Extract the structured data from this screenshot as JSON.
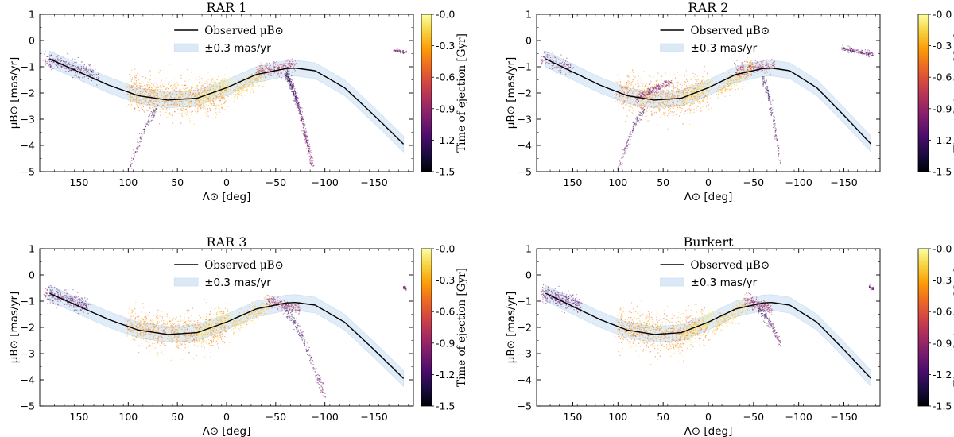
{
  "figure": {
    "colormap": "inferno",
    "cmap_stops": [
      "#000004",
      "#1b0c41",
      "#4a0c6b",
      "#781c6d",
      "#a52c60",
      "#cf4446",
      "#ed6925",
      "#fb9b06",
      "#f7d13d",
      "#fcffa4"
    ],
    "band_color": "#dbe9f6",
    "curve_color": "#000000"
  },
  "chart_data": [
    {
      "type": "scatter",
      "title": "RAR 1",
      "xlabel": "Λ⊙ [deg]",
      "ylabel": "μB⊙ [mas/yr]",
      "xlim": [
        190,
        -190
      ],
      "ylim": [
        -5,
        1
      ],
      "xticks": [
        150,
        100,
        50,
        0,
        -50,
        -100,
        -150
      ],
      "xtick_labels": [
        "150",
        "100",
        "50",
        "0",
        "−50",
        "−100",
        "−150"
      ],
      "yticks": [
        1,
        0,
        -1,
        -2,
        -3,
        -4,
        -5
      ],
      "ytick_labels": [
        "1",
        "0",
        "−1",
        "−2",
        "−3",
        "−4",
        "−5"
      ],
      "legend": {
        "curve_label": "Observed μB⊙",
        "band_label": "±0.3 mas/yr",
        "placement": "top-center"
      },
      "observed_curve": {
        "x": [
          180,
          150,
          120,
          90,
          60,
          30,
          0,
          -30,
          -60,
          -70,
          -90,
          -120,
          -150,
          -180
        ],
        "y": [
          -0.7,
          -1.2,
          -1.7,
          -2.1,
          -2.27,
          -2.2,
          -1.8,
          -1.3,
          -1.07,
          -1.05,
          -1.15,
          -1.8,
          -2.85,
          -3.95
        ]
      },
      "band_halfwidth": 0.3,
      "colorbar": {
        "label": "Time of ejection [Gyr]",
        "range": [
          -1.5,
          0.0
        ],
        "ticks": [
          -0.0,
          -0.3,
          -0.6,
          -0.9,
          -1.2,
          -1.5
        ],
        "tick_labels": [
          "-0.0",
          "-0.3",
          "-0.6",
          "-0.9",
          "-1.2",
          "-1.5"
        ]
      },
      "clouds": [
        {
          "x": [
            130,
            185
          ],
          "y": [
            -0.35,
            -1.0
          ],
          "t": [
            -1.3,
            -0.9
          ],
          "n": 300,
          "spread": 0.15,
          "shape": "curve"
        },
        {
          "x": [
            100,
            0
          ],
          "y": [
            -1.6,
            -2.6
          ],
          "t": [
            -0.6,
            -0.1
          ],
          "n": 1200,
          "spread": 0.35,
          "shape": "curve"
        },
        {
          "x": [
            30,
            -5
          ],
          "y": [
            -2.3,
            -1.6
          ],
          "t": [
            -0.15,
            0.0
          ],
          "n": 300,
          "spread": 0.15,
          "shape": "linear"
        },
        {
          "x": [
            -5,
            -40
          ],
          "y": [
            -2.1,
            -1.2
          ],
          "t": [
            -0.3,
            -0.15
          ],
          "n": 250,
          "spread": 0.18,
          "shape": "linear"
        },
        {
          "x": [
            -30,
            -70
          ],
          "y": [
            -1.2,
            -0.95
          ],
          "t": [
            -1.0,
            -0.6
          ],
          "n": 250,
          "spread": 0.12,
          "shape": "linear"
        },
        {
          "x": [
            -60,
            -88
          ],
          "y": [
            -1.3,
            -4.9
          ],
          "t": [
            -1.3,
            -0.9
          ],
          "n": 450,
          "spread": 0.12,
          "shape": "arm"
        },
        {
          "x": [
            70,
            100
          ],
          "y": [
            -2.6,
            -5.0
          ],
          "t": [
            -1.3,
            -1.0
          ],
          "n": 120,
          "spread": 0.1,
          "shape": "arm"
        },
        {
          "x": [
            -170,
            -183
          ],
          "y": [
            -0.38,
            -0.45
          ],
          "t": [
            -1.1,
            -1.0
          ],
          "n": 60,
          "spread": 0.03,
          "shape": "linear"
        }
      ]
    },
    {
      "type": "scatter",
      "title": "RAR 2",
      "xlabel": "Λ⊙ [deg]",
      "ylabel": "μB⊙ [mas/yr]",
      "xlim": [
        190,
        -190
      ],
      "ylim": [
        -5,
        1
      ],
      "xticks": [
        150,
        100,
        50,
        0,
        -50,
        -100,
        -150
      ],
      "xtick_labels": [
        "150",
        "100",
        "50",
        "0",
        "−50",
        "−100",
        "−150"
      ],
      "yticks": [
        1,
        0,
        -1,
        -2,
        -3,
        -4,
        -5
      ],
      "ytick_labels": [
        "1",
        "0",
        "−1",
        "−2",
        "−3",
        "−4",
        "−5"
      ],
      "legend": {
        "curve_label": "Observed μB⊙",
        "band_label": "±0.3 mas/yr",
        "placement": "top-center"
      },
      "observed_curve": {
        "x": [
          180,
          150,
          120,
          90,
          60,
          30,
          0,
          -30,
          -60,
          -70,
          -90,
          -120,
          -150,
          -180
        ],
        "y": [
          -0.7,
          -1.2,
          -1.7,
          -2.1,
          -2.27,
          -2.2,
          -1.8,
          -1.3,
          -1.07,
          -1.05,
          -1.15,
          -1.8,
          -2.85,
          -3.95
        ]
      },
      "band_halfwidth": 0.3,
      "colorbar": {
        "label": "Time of ejection [Gyr]",
        "range": [
          -1.5,
          0.0
        ],
        "ticks": [
          -0.0,
          -0.3,
          -0.6,
          -0.9,
          -1.2,
          -1.5
        ],
        "tick_labels": [
          "-0.0",
          "-0.3",
          "-0.6",
          "-0.9",
          "-1.2",
          "-1.5"
        ]
      },
      "clouds": [
        {
          "x": [
            150,
            185
          ],
          "y": [
            -0.5,
            -0.9
          ],
          "t": [
            -1.1,
            -0.9
          ],
          "n": 150,
          "spread": 0.15,
          "shape": "curve"
        },
        {
          "x": [
            100,
            0
          ],
          "y": [
            -1.6,
            -2.5
          ],
          "t": [
            -0.6,
            -0.2
          ],
          "n": 1000,
          "spread": 0.35,
          "shape": "curve"
        },
        {
          "x": [
            80,
            40
          ],
          "y": [
            -2.2,
            -1.55
          ],
          "t": [
            -1.1,
            -0.8
          ],
          "n": 200,
          "spread": 0.08,
          "shape": "linear"
        },
        {
          "x": [
            30,
            -5
          ],
          "y": [
            -2.3,
            -1.6
          ],
          "t": [
            -0.15,
            0.0
          ],
          "n": 250,
          "spread": 0.15,
          "shape": "linear"
        },
        {
          "x": [
            -10,
            -50
          ],
          "y": [
            -2.0,
            -1.0
          ],
          "t": [
            -0.35,
            -0.2
          ],
          "n": 250,
          "spread": 0.18,
          "shape": "linear"
        },
        {
          "x": [
            -30,
            -75
          ],
          "y": [
            -1.1,
            -0.95
          ],
          "t": [
            -1.0,
            -0.6
          ],
          "n": 200,
          "spread": 0.12,
          "shape": "linear"
        },
        {
          "x": [
            -60,
            -80
          ],
          "y": [
            -1.4,
            -4.8
          ],
          "t": [
            -1.3,
            -1.0
          ],
          "n": 150,
          "spread": 0.12,
          "shape": "arm"
        },
        {
          "x": [
            70,
            100
          ],
          "y": [
            -2.6,
            -5.0
          ],
          "t": [
            -1.3,
            -1.0
          ],
          "n": 120,
          "spread": 0.1,
          "shape": "arm"
        },
        {
          "x": [
            -148,
            -183
          ],
          "y": [
            -0.3,
            -0.55
          ],
          "t": [
            -1.2,
            -1.0
          ],
          "n": 160,
          "spread": 0.05,
          "shape": "linear"
        }
      ]
    },
    {
      "type": "scatter",
      "title": "RAR 3",
      "xlabel": "Λ⊙ [deg]",
      "ylabel": "μB⊙ [mas/yr]",
      "xlim": [
        190,
        -190
      ],
      "ylim": [
        -5,
        1
      ],
      "xticks": [
        150,
        100,
        50,
        0,
        -50,
        -100,
        -150
      ],
      "xtick_labels": [
        "150",
        "100",
        "50",
        "0",
        "−50",
        "−100",
        "−150"
      ],
      "yticks": [
        1,
        0,
        -1,
        -2,
        -3,
        -4,
        -5
      ],
      "ytick_labels": [
        "1",
        "0",
        "−1",
        "−2",
        "−3",
        "−4",
        "−5"
      ],
      "legend": {
        "curve_label": "Observed μB⊙",
        "band_label": "±0.3 mas/yr",
        "placement": "top-center"
      },
      "observed_curve": {
        "x": [
          180,
          150,
          120,
          90,
          60,
          30,
          0,
          -30,
          -60,
          -70,
          -90,
          -120,
          -150,
          -180
        ],
        "y": [
          -0.7,
          -1.2,
          -1.7,
          -2.1,
          -2.27,
          -2.2,
          -1.8,
          -1.3,
          -1.07,
          -1.05,
          -1.15,
          -1.8,
          -2.85,
          -3.95
        ]
      },
      "band_halfwidth": 0.3,
      "colorbar": {
        "label": "Time of ejection [Gyr]",
        "range": [
          -1.5,
          0.0
        ],
        "ticks": [
          -0.0,
          -0.3,
          -0.6,
          -0.9,
          -1.2,
          -1.5
        ],
        "tick_labels": [
          "-0.0",
          "-0.3",
          "-0.6",
          "-0.9",
          "-1.2",
          "-1.5"
        ]
      },
      "clouds": [
        {
          "x": [
            140,
            185
          ],
          "y": [
            -0.45,
            -1.0
          ],
          "t": [
            -1.2,
            -0.9
          ],
          "n": 300,
          "spread": 0.15,
          "shape": "curve"
        },
        {
          "x": [
            100,
            0
          ],
          "y": [
            -1.6,
            -2.5
          ],
          "t": [
            -0.6,
            -0.1
          ],
          "n": 1100,
          "spread": 0.35,
          "shape": "curve"
        },
        {
          "x": [
            30,
            -5
          ],
          "y": [
            -2.3,
            -1.6
          ],
          "t": [
            -0.15,
            0.0
          ],
          "n": 250,
          "spread": 0.15,
          "shape": "linear"
        },
        {
          "x": [
            -5,
            -45
          ],
          "y": [
            -2.0,
            -1.1
          ],
          "t": [
            -0.3,
            -0.15
          ],
          "n": 250,
          "spread": 0.18,
          "shape": "linear"
        },
        {
          "x": [
            -40,
            -75
          ],
          "y": [
            -1.0,
            -1.3
          ],
          "t": [
            -1.0,
            -0.7
          ],
          "n": 200,
          "spread": 0.12,
          "shape": "linear"
        },
        {
          "x": [
            -60,
            -100
          ],
          "y": [
            -1.4,
            -4.7
          ],
          "t": [
            -1.3,
            -1.0
          ],
          "n": 200,
          "spread": 0.12,
          "shape": "arm"
        },
        {
          "x": [
            -180,
            -183
          ],
          "y": [
            -0.48,
            -0.55
          ],
          "t": [
            -1.1,
            -1.0
          ],
          "n": 30,
          "spread": 0.03,
          "shape": "linear"
        }
      ]
    },
    {
      "type": "scatter",
      "title": "Burkert",
      "xlabel": "Λ⊙ [deg]",
      "ylabel": "μB⊙ [mas/yr]",
      "xlim": [
        190,
        -190
      ],
      "ylim": [
        -5,
        1
      ],
      "xticks": [
        150,
        100,
        50,
        0,
        -50,
        -100,
        -150
      ],
      "xtick_labels": [
        "150",
        "100",
        "50",
        "0",
        "−50",
        "−100",
        "−150"
      ],
      "yticks": [
        1,
        0,
        -1,
        -2,
        -3,
        -4,
        -5
      ],
      "ytick_labels": [
        "1",
        "0",
        "−1",
        "−2",
        "−3",
        "−4",
        "−5"
      ],
      "legend": {
        "curve_label": "Observed μB⊙",
        "band_label": "±0.3 mas/yr",
        "placement": "top-center"
      },
      "observed_curve": {
        "x": [
          180,
          150,
          120,
          90,
          60,
          30,
          0,
          -30,
          -60,
          -70,
          -90,
          -120,
          -150,
          -180
        ],
        "y": [
          -0.7,
          -1.2,
          -1.7,
          -2.1,
          -2.27,
          -2.2,
          -1.8,
          -1.3,
          -1.07,
          -1.05,
          -1.15,
          -1.8,
          -2.85,
          -3.95
        ]
      },
      "band_halfwidth": 0.3,
      "colorbar": {
        "label": "Time of ejection [Gyr]",
        "range": [
          -1.5,
          0.0
        ],
        "ticks": [
          -0.0,
          -0.3,
          -0.6,
          -0.9,
          -1.2,
          -1.5
        ],
        "tick_labels": [
          "-0.0",
          "-0.3",
          "-0.6",
          "-0.9",
          "-1.2",
          "-1.5"
        ]
      },
      "clouds": [
        {
          "x": [
            140,
            185
          ],
          "y": [
            -0.5,
            -1.0
          ],
          "t": [
            -1.2,
            -0.9
          ],
          "n": 300,
          "spread": 0.15,
          "shape": "curve"
        },
        {
          "x": [
            100,
            0
          ],
          "y": [
            -1.6,
            -2.5
          ],
          "t": [
            -0.6,
            -0.1
          ],
          "n": 1100,
          "spread": 0.35,
          "shape": "curve"
        },
        {
          "x": [
            30,
            -5
          ],
          "y": [
            -2.3,
            -1.6
          ],
          "t": [
            -0.15,
            0.0
          ],
          "n": 250,
          "spread": 0.15,
          "shape": "linear"
        },
        {
          "x": [
            -5,
            -45
          ],
          "y": [
            -2.0,
            -1.1
          ],
          "t": [
            -0.3,
            -0.15
          ],
          "n": 250,
          "spread": 0.18,
          "shape": "linear"
        },
        {
          "x": [
            -40,
            -70
          ],
          "y": [
            -1.0,
            -1.3
          ],
          "t": [
            -1.0,
            -0.7
          ],
          "n": 220,
          "spread": 0.12,
          "shape": "linear"
        },
        {
          "x": [
            -55,
            -80
          ],
          "y": [
            -1.3,
            -2.6
          ],
          "t": [
            -1.3,
            -1.0
          ],
          "n": 150,
          "spread": 0.1,
          "shape": "arm"
        },
        {
          "x": [
            -178,
            -183
          ],
          "y": [
            -0.45,
            -0.55
          ],
          "t": [
            -1.1,
            -1.0
          ],
          "n": 40,
          "spread": 0.03,
          "shape": "linear"
        }
      ]
    }
  ]
}
